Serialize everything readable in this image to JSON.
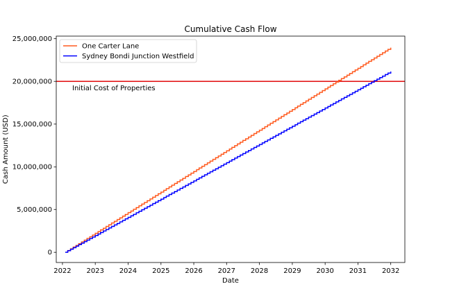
{
  "chart_data": {
    "type": "line",
    "title": "Cumulative Cash Flow",
    "xlabel": "Date",
    "ylabel": "Cash Amount (USD)",
    "xlim": [
      "2021-10-24",
      "2032-06-06"
    ],
    "ylim": [
      -1200000,
      25300000
    ],
    "x_ticks": [
      "2022",
      "2023",
      "2024",
      "2025",
      "2026",
      "2027",
      "2028",
      "2029",
      "2030",
      "2031",
      "2032"
    ],
    "y_ticks": [
      "0",
      "5,000,000",
      "10,000,000",
      "15,000,000",
      "20,000,000",
      "25,000,000"
    ],
    "y_tick_values": [
      0,
      5000000,
      10000000,
      15000000,
      20000000,
      25000000
    ],
    "grid": false,
    "legend_position": "upper-left",
    "series": [
      {
        "name": "One Carter Lane",
        "color": "#ff5a1f",
        "style": "steps-post",
        "frequency": "monthly",
        "start": "2022-02-01",
        "end": "2032-01-01",
        "start_value": 0,
        "end_value": 23950000
      },
      {
        "name": "Sydney Bondi Junction Westfield",
        "color": "#0000ff",
        "style": "steps-post",
        "frequency": "monthly",
        "start": "2022-02-01",
        "end": "2032-01-01",
        "start_value": 0,
        "end_value": 21150000
      }
    ],
    "reference_lines": [
      {
        "axis": "y",
        "value": 20000000,
        "color": "#e31a1c",
        "label": "Initial Cost of Properties"
      }
    ]
  }
}
